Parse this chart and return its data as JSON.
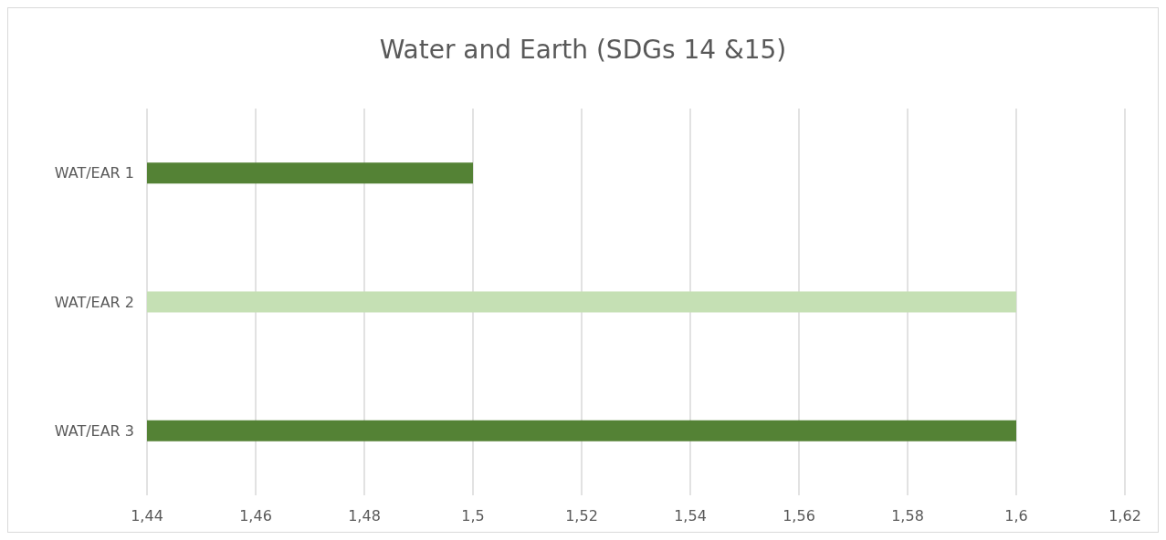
{
  "chart_data": {
    "type": "bar",
    "orientation": "horizontal",
    "title": "Water and Earth (SDGs 14 &15)",
    "categories": [
      "WAT/EAR 1",
      "WAT/EAR 2",
      "WAT/EAR 3"
    ],
    "values": [
      1.5,
      1.6,
      1.6
    ],
    "colors": [
      "#548235",
      "#c5e0b4",
      "#548235"
    ],
    "xlim": [
      1.44,
      1.62
    ],
    "xticks": [
      {
        "value": 1.44,
        "label": "1,44"
      },
      {
        "value": 1.46,
        "label": "1,46"
      },
      {
        "value": 1.48,
        "label": "1,48"
      },
      {
        "value": 1.5,
        "label": "1,5"
      },
      {
        "value": 1.52,
        "label": "1,52"
      },
      {
        "value": 1.54,
        "label": "1,54"
      },
      {
        "value": 1.56,
        "label": "1,56"
      },
      {
        "value": 1.58,
        "label": "1,58"
      },
      {
        "value": 1.6,
        "label": "1,6"
      },
      {
        "value": 1.62,
        "label": "1,62"
      }
    ],
    "grid": "x"
  }
}
